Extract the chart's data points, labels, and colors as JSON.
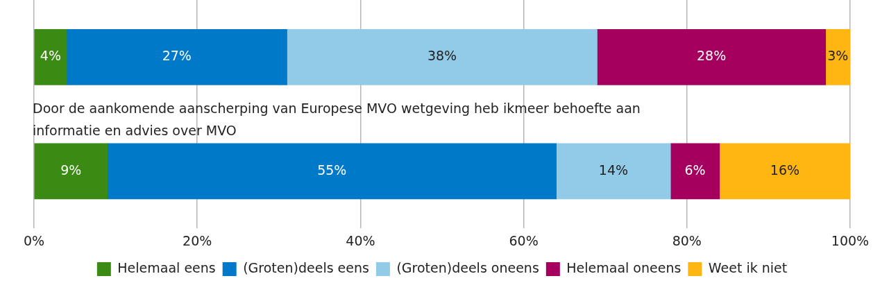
{
  "chart_data": {
    "type": "bar",
    "orientation": "horizontal",
    "stacked": true,
    "categories": [
      null,
      "Door de aankomende aanscherping van Europese MVO wetgeving heb ikmeer behoefte aan informatie en advies over MVO"
    ],
    "series": [
      {
        "name": "Helemaal eens",
        "color": "#3a8a13",
        "values": [
          4,
          9
        ],
        "value_labels": [
          "4%",
          "9%"
        ]
      },
      {
        "name": "(Groten)deels eens",
        "color": "#0079c8",
        "values": [
          27,
          55
        ],
        "value_labels": [
          "27%",
          "55%"
        ]
      },
      {
        "name": "(Groten)deels oneens",
        "color": "#92cbe8",
        "values": [
          38,
          14
        ],
        "value_labels": [
          "38%",
          "14%"
        ]
      },
      {
        "name": "Helemaal oneens",
        "color": "#a6005f",
        "values": [
          28,
          6
        ],
        "value_labels": [
          "28%",
          "6%"
        ]
      },
      {
        "name": "Weet ik niet",
        "color": "#ffb612",
        "values": [
          3,
          16
        ],
        "value_labels": [
          "3%",
          "16%"
        ]
      }
    ],
    "xlim": [
      0,
      100
    ],
    "xticks": [
      {
        "value": 0,
        "label": "0%"
      },
      {
        "value": 20,
        "label": "20%"
      },
      {
        "value": 40,
        "label": "40%"
      },
      {
        "value": 60,
        "label": "60%"
      },
      {
        "value": 80,
        "label": "80%"
      },
      {
        "value": 100,
        "label": "100%"
      }
    ],
    "grid": "x",
    "legend": "bottom"
  }
}
